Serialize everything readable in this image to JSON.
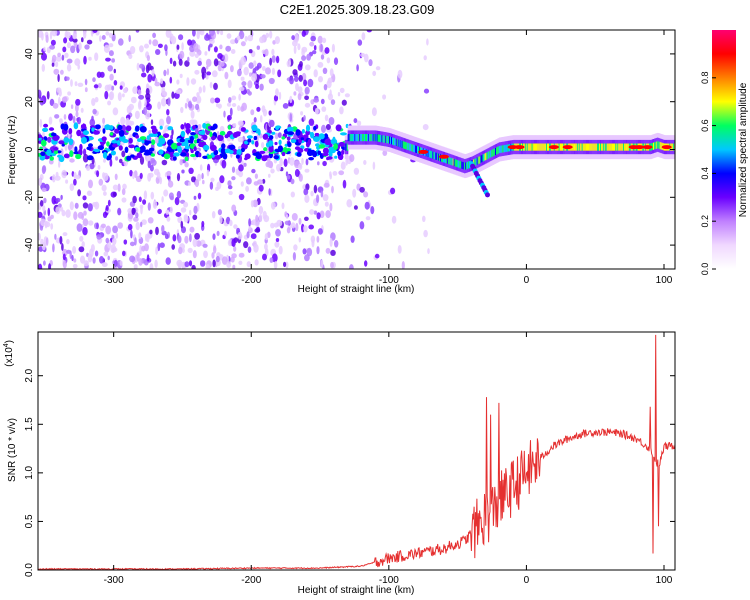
{
  "title": "C2E1.2025.309.18.23.G09",
  "chart_data": [
    {
      "type": "heatmap",
      "xlabel": "Height of straight line (km)",
      "ylabel": "Frequency (Hz)",
      "xlim": [
        -355,
        108
      ],
      "ylim": [
        -50,
        50
      ],
      "xticks": [
        -300,
        -200,
        -100,
        0,
        100
      ],
      "yticks": [
        -40,
        -20,
        0,
        20,
        40
      ],
      "colorbar": {
        "label": "Normalized spectral amplitude",
        "range": [
          0,
          1
        ],
        "ticks": [
          "0.0",
          "0.2",
          "0.4",
          "0.6",
          "0.8"
        ],
        "colors": [
          "#ffffff",
          "#f0d8ff",
          "#c080ff",
          "#6a00ff",
          "#0000ff",
          "#00c8ff",
          "#00ff60",
          "#ffff00",
          "#ff8000",
          "#ff0000",
          "#ff0070"
        ]
      },
      "ridge": {
        "description_free": true,
        "x": [
          -130,
          -120,
          -110,
          -100,
          -90,
          -80,
          -70,
          -60,
          -50,
          -45,
          -40,
          -30,
          -20,
          -10,
          0,
          20,
          40,
          60,
          80,
          90,
          95,
          100,
          108
        ],
        "y": [
          5,
          5,
          5,
          4,
          2,
          0,
          -2,
          -4,
          -6,
          -7,
          -6,
          -3,
          0,
          1,
          1,
          1,
          1,
          1,
          1,
          1,
          2,
          1,
          1
        ]
      }
    },
    {
      "type": "line",
      "xlabel": "Height of straight line (km)",
      "ylabel": "SNR (10 * v/v)",
      "yscale_label": "(x10",
      "yscale_exp": "4",
      "xlim": [
        -355,
        108
      ],
      "ylim": [
        0,
        2.45
      ],
      "xticks": [
        -300,
        -200,
        -100,
        0,
        100
      ],
      "yticks": [
        "0.0",
        "0.5",
        "1.0",
        "1.5",
        "2.0"
      ],
      "color": "#e53030",
      "envelope": {
        "x": [
          -355,
          -300,
          -250,
          -200,
          -150,
          -120,
          -100,
          -80,
          -60,
          -45,
          -35,
          -30,
          -25,
          -20,
          -10,
          0,
          10,
          20,
          30,
          40,
          50,
          60,
          70,
          80,
          85,
          90,
          93,
          95,
          97,
          100,
          108
        ],
        "y": [
          0.01,
          0.01,
          0.01,
          0.02,
          0.02,
          0.04,
          0.12,
          0.17,
          0.22,
          0.3,
          0.45,
          0.55,
          0.6,
          0.7,
          0.85,
          1.0,
          1.15,
          1.28,
          1.35,
          1.4,
          1.42,
          1.42,
          1.4,
          1.35,
          1.3,
          1.25,
          1.15,
          1.1,
          1.1,
          1.27,
          1.28
        ]
      },
      "spikes": [
        {
          "x": -29,
          "y": 1.78
        },
        {
          "x": -26,
          "y": 1.6
        },
        {
          "x": -20,
          "y": 1.72
        },
        {
          "x": 90,
          "y": 1.68
        },
        {
          "x": 94,
          "y": 2.42
        },
        {
          "x": 92,
          "y": 0.17
        },
        {
          "x": 96,
          "y": 0.45
        }
      ]
    }
  ]
}
